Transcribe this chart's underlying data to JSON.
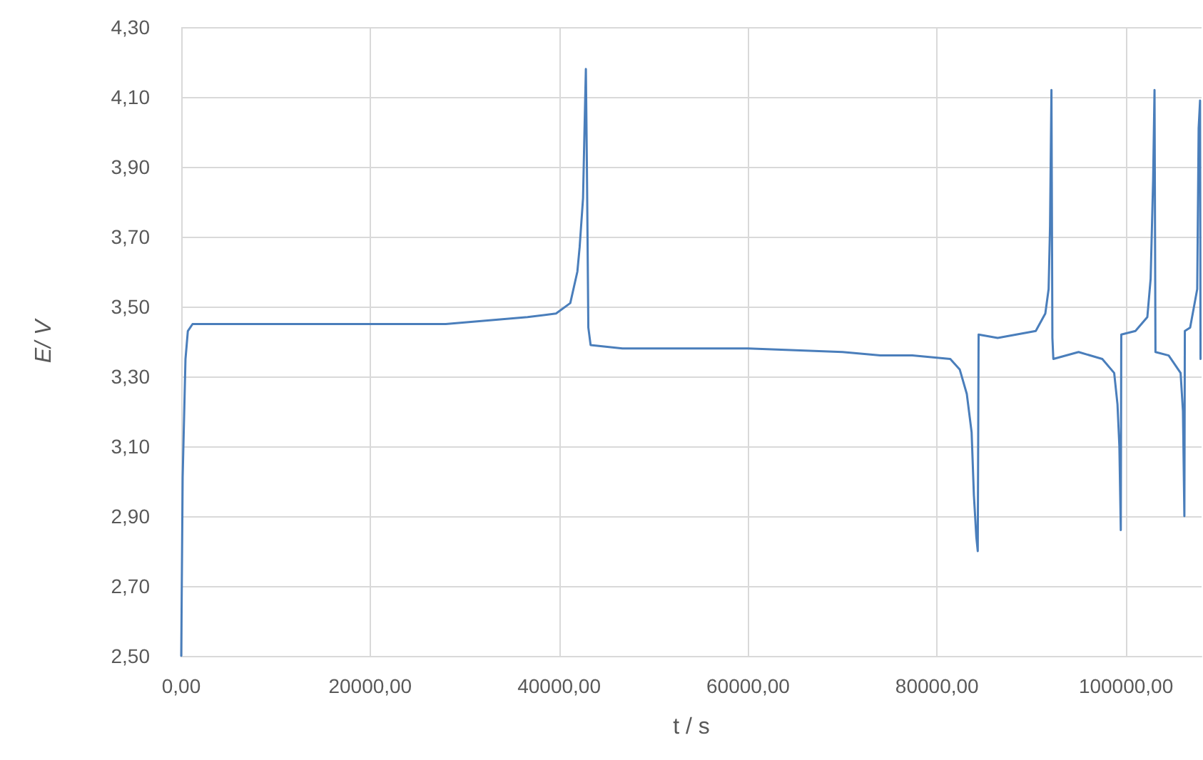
{
  "chart_data": {
    "type": "line",
    "xlabel": "t / s",
    "ylabel": "E/ V",
    "x": [
      0,
      150,
      450,
      700,
      1200,
      28000,
      36650,
      39670,
      41180,
      41930,
      42170,
      42530,
      42680,
      42830,
      42940,
      43090,
      43330,
      46700,
      51730,
      60000,
      70000,
      74000,
      77380,
      81400,
      82400,
      83150,
      83660,
      83900,
      84160,
      84310,
      84400,
      86420,
      90450,
      91460,
      91810,
      91960,
      92110,
      92210,
      92310,
      94980,
      97490,
      98750,
      99100,
      99300,
      99450,
      99500,
      101000,
      102260,
      102610,
      102870,
      103020,
      103120,
      104520,
      105780,
      106030,
      106180,
      106230,
      106790,
      107540,
      107690,
      107840,
      107890
    ],
    "series": [
      {
        "color": "#4a7ebb",
        "values": [
          2.5,
          3.01,
          3.35,
          3.43,
          3.45,
          3.45,
          3.47,
          3.48,
          3.51,
          3.6,
          3.67,
          3.81,
          4.0,
          4.18,
          3.9,
          3.44,
          3.39,
          3.38,
          3.38,
          3.38,
          3.37,
          3.36,
          3.36,
          3.35,
          3.32,
          3.25,
          3.14,
          2.96,
          2.84,
          2.8,
          3.42,
          3.41,
          3.43,
          3.48,
          3.55,
          3.73,
          4.12,
          3.41,
          3.35,
          3.37,
          3.35,
          3.31,
          3.22,
          3.1,
          2.86,
          3.42,
          3.43,
          3.47,
          3.58,
          3.86,
          4.12,
          3.37,
          3.36,
          3.31,
          3.2,
          2.9,
          3.43,
          3.44,
          3.55,
          4.01,
          4.09,
          3.35
        ]
      }
    ],
    "xlim": [
      0,
      108000
    ],
    "xticks": [
      {
        "value": 0,
        "label": "0,00"
      },
      {
        "value": 20000,
        "label": "20000,00"
      },
      {
        "value": 40000,
        "label": "40000,00"
      },
      {
        "value": 60000,
        "label": "60000,00"
      },
      {
        "value": 80000,
        "label": "80000,00"
      },
      {
        "value": 100000,
        "label": "100000,00"
      }
    ],
    "ylim": [
      2.5,
      4.3
    ],
    "yticks": [
      {
        "value": 2.5,
        "label": "2,50"
      },
      {
        "value": 2.7,
        "label": "2,70"
      },
      {
        "value": 2.9,
        "label": "2,90"
      },
      {
        "value": 3.1,
        "label": "3,10"
      },
      {
        "value": 3.3,
        "label": "3,30"
      },
      {
        "value": 3.5,
        "label": "3,50"
      },
      {
        "value": 3.7,
        "label": "3,70"
      },
      {
        "value": 3.9,
        "label": "3,90"
      },
      {
        "value": 4.1,
        "label": "4,10"
      },
      {
        "value": 4.3,
        "label": "4,30"
      }
    ],
    "grid": true,
    "marker": "none",
    "line_style": "solid"
  }
}
